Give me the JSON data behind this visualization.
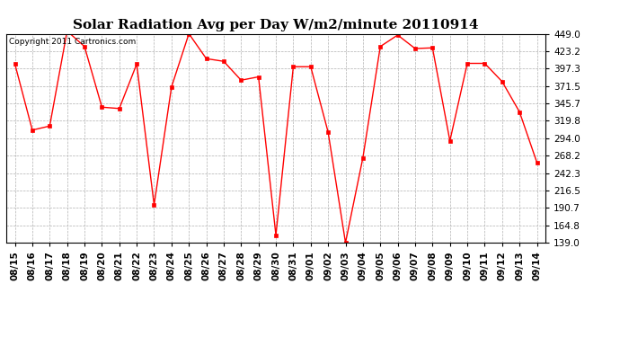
{
  "title": "Solar Radiation Avg per Day W/m2/minute 20110914",
  "copyright_text": "Copyright 2011 Cartronics.com",
  "dates": [
    "08/15",
    "08/16",
    "08/17",
    "08/18",
    "08/19",
    "08/20",
    "08/21",
    "08/22",
    "08/23",
    "08/24",
    "08/25",
    "08/26",
    "08/27",
    "08/28",
    "08/29",
    "08/30",
    "08/31",
    "09/01",
    "09/02",
    "09/03",
    "09/04",
    "09/05",
    "09/06",
    "09/07",
    "09/08",
    "09/09",
    "09/10",
    "09/11",
    "09/12",
    "09/13",
    "09/14"
  ],
  "values": [
    404,
    306,
    312,
    453,
    430,
    340,
    338,
    404,
    195,
    370,
    449,
    412,
    408,
    380,
    385,
    150,
    400,
    400,
    303,
    139,
    265,
    430,
    447,
    427,
    428,
    290,
    405,
    405,
    378,
    333,
    258
  ],
  "y_ticks": [
    139.0,
    164.8,
    190.7,
    216.5,
    242.3,
    268.2,
    294.0,
    319.8,
    345.7,
    371.5,
    397.3,
    423.2,
    449.0
  ],
  "ylim": [
    139.0,
    449.0
  ],
  "line_color": "#ff0000",
  "marker": "s",
  "marker_size": 2.5,
  "bg_color": "#ffffff",
  "grid_color": "#b0b0b0",
  "title_fontsize": 11,
  "tick_fontsize": 7.5,
  "copyright_fontsize": 6.5
}
